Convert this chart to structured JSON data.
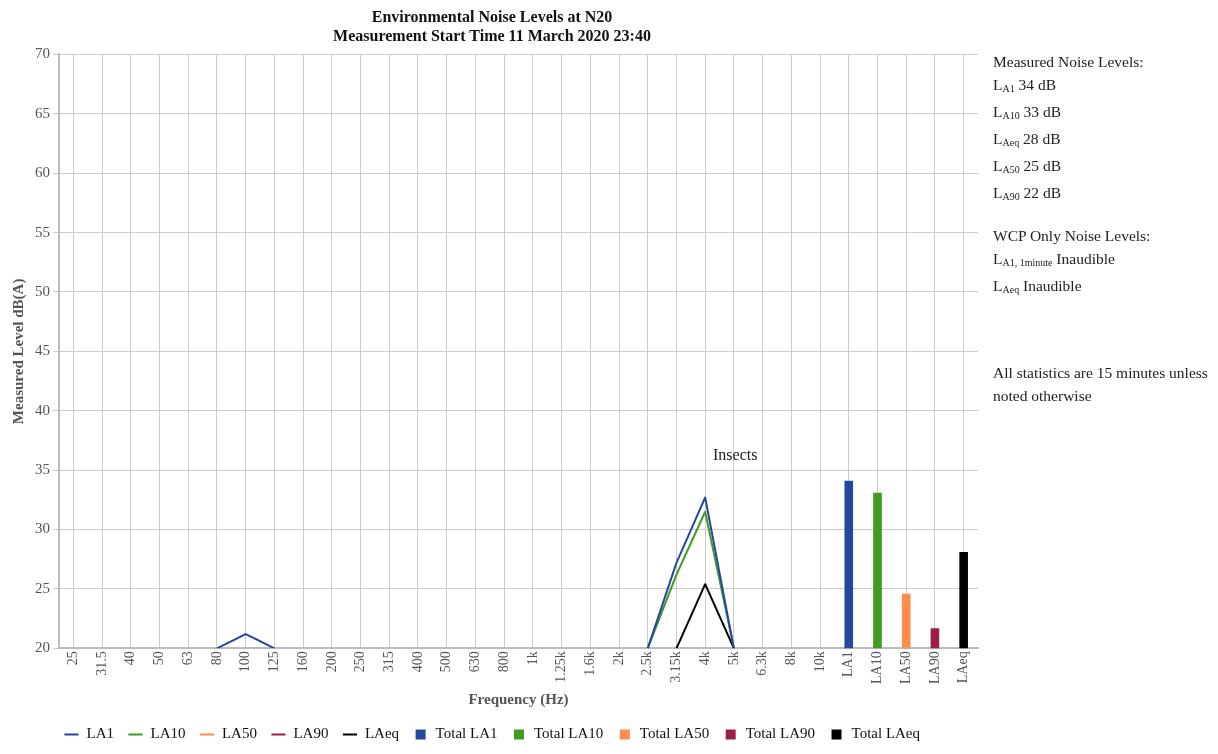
{
  "chart_data": {
    "type": "line",
    "title": "Environmental Noise Levels at N20",
    "subtitle": "Measurement Start Time 11 March 2020 23:40",
    "xlabel": "Frequency (Hz)",
    "ylabel": "Measured Level dB(A)",
    "categories": [
      "25",
      "31.5",
      "40",
      "50",
      "63",
      "80",
      "100",
      "125",
      "160",
      "200",
      "250",
      "315",
      "400",
      "500",
      "630",
      "800",
      "1k",
      "1.25k",
      "1.6k",
      "2k",
      "2.5k",
      "3.15k",
      "4k",
      "5k",
      "6.3k",
      "8k",
      "10k",
      "LA1",
      "LA10",
      "LA50",
      "LA90",
      "LAeq"
    ],
    "series": [
      {
        "name": "LA1",
        "color": "#2347a0",
        "values": [
          null,
          null,
          null,
          null,
          null,
          20,
          21.2,
          20,
          null,
          null,
          null,
          null,
          null,
          null,
          null,
          null,
          null,
          null,
          null,
          null,
          20,
          27.2,
          32.7,
          20,
          null,
          null,
          null,
          null,
          null,
          null,
          null,
          null
        ]
      },
      {
        "name": "LA10",
        "color": "#3f9b22",
        "values": [
          null,
          null,
          null,
          null,
          null,
          null,
          null,
          null,
          null,
          null,
          null,
          null,
          null,
          null,
          null,
          null,
          null,
          null,
          null,
          null,
          20,
          26.2,
          31.5,
          20,
          null,
          null,
          null,
          null,
          null,
          null,
          null,
          null
        ]
      },
      {
        "name": "LA50",
        "color": "#ff8c4a",
        "values": [
          null,
          null,
          null,
          null,
          null,
          null,
          null,
          null,
          null,
          null,
          null,
          null,
          null,
          null,
          null,
          null,
          null,
          null,
          null,
          null,
          null,
          null,
          null,
          null,
          null,
          null,
          null,
          null,
          null,
          null,
          null,
          null
        ]
      },
      {
        "name": "LA90",
        "color": "#9b1f45",
        "values": [
          null,
          null,
          null,
          null,
          null,
          null,
          null,
          null,
          null,
          null,
          null,
          null,
          null,
          null,
          null,
          null,
          null,
          null,
          null,
          null,
          null,
          null,
          null,
          null,
          null,
          null,
          null,
          null,
          null,
          null,
          null,
          null
        ]
      },
      {
        "name": "LAeq",
        "color": "#000000",
        "values": [
          null,
          null,
          null,
          null,
          null,
          null,
          null,
          null,
          null,
          null,
          null,
          null,
          null,
          null,
          null,
          null,
          null,
          null,
          null,
          null,
          null,
          20,
          25.4,
          20,
          null,
          null,
          null,
          null,
          null,
          null,
          null,
          null
        ]
      },
      {
        "name": "Total LA1",
        "type": "bar",
        "color": "#2347a0",
        "values": [
          null,
          null,
          null,
          null,
          null,
          null,
          null,
          null,
          null,
          null,
          null,
          null,
          null,
          null,
          null,
          null,
          null,
          null,
          null,
          null,
          null,
          null,
          null,
          null,
          null,
          null,
          null,
          34.1,
          null,
          null,
          null,
          null
        ]
      },
      {
        "name": "Total LA10",
        "type": "bar",
        "color": "#3f9b22",
        "values": [
          null,
          null,
          null,
          null,
          null,
          null,
          null,
          null,
          null,
          null,
          null,
          null,
          null,
          null,
          null,
          null,
          null,
          null,
          null,
          null,
          null,
          null,
          null,
          null,
          null,
          null,
          null,
          null,
          33.1,
          null,
          null,
          null
        ]
      },
      {
        "name": "Total LA50",
        "type": "bar",
        "color": "#ff8c4a",
        "values": [
          null,
          null,
          null,
          null,
          null,
          null,
          null,
          null,
          null,
          null,
          null,
          null,
          null,
          null,
          null,
          null,
          null,
          null,
          null,
          null,
          null,
          null,
          null,
          null,
          null,
          null,
          null,
          null,
          null,
          24.6,
          null,
          null
        ]
      },
      {
        "name": "Total LA90",
        "type": "bar",
        "color": "#9b1f45",
        "values": [
          null,
          null,
          null,
          null,
          null,
          null,
          null,
          null,
          null,
          null,
          null,
          null,
          null,
          null,
          null,
          null,
          null,
          null,
          null,
          null,
          null,
          null,
          null,
          null,
          null,
          null,
          null,
          null,
          null,
          null,
          21.7,
          null
        ]
      },
      {
        "name": "Total LAeq",
        "type": "bar",
        "color": "#000000",
        "values": [
          null,
          null,
          null,
          null,
          null,
          null,
          null,
          null,
          null,
          null,
          null,
          null,
          null,
          null,
          null,
          null,
          null,
          null,
          null,
          null,
          null,
          null,
          null,
          null,
          null,
          null,
          null,
          null,
          null,
          null,
          null,
          28.1
        ]
      }
    ],
    "ylim": [
      20,
      70
    ],
    "yticks": [
      20,
      25,
      30,
      35,
      40,
      45,
      50,
      55,
      60,
      65,
      70
    ],
    "grid": true,
    "legend": "bottom",
    "annotations": [
      "Insects",
      "Measured Noise Levels:",
      "L$_{A1}$ 34 dB",
      "L$_{A10}$ 33 dB",
      "L$_{Aeq}$ 28 dB",
      "L$_{A50}$ 25 dB",
      "L$_{A90}$ 22 dB",
      "WCP Only Noise Levels:",
      "L$_{A1, 1minute}$ Inaudible",
      "L$_{Aeq}$ Inaudible",
      "All statistics are 15 minutes unless noted otherwise"
    ]
  }
}
